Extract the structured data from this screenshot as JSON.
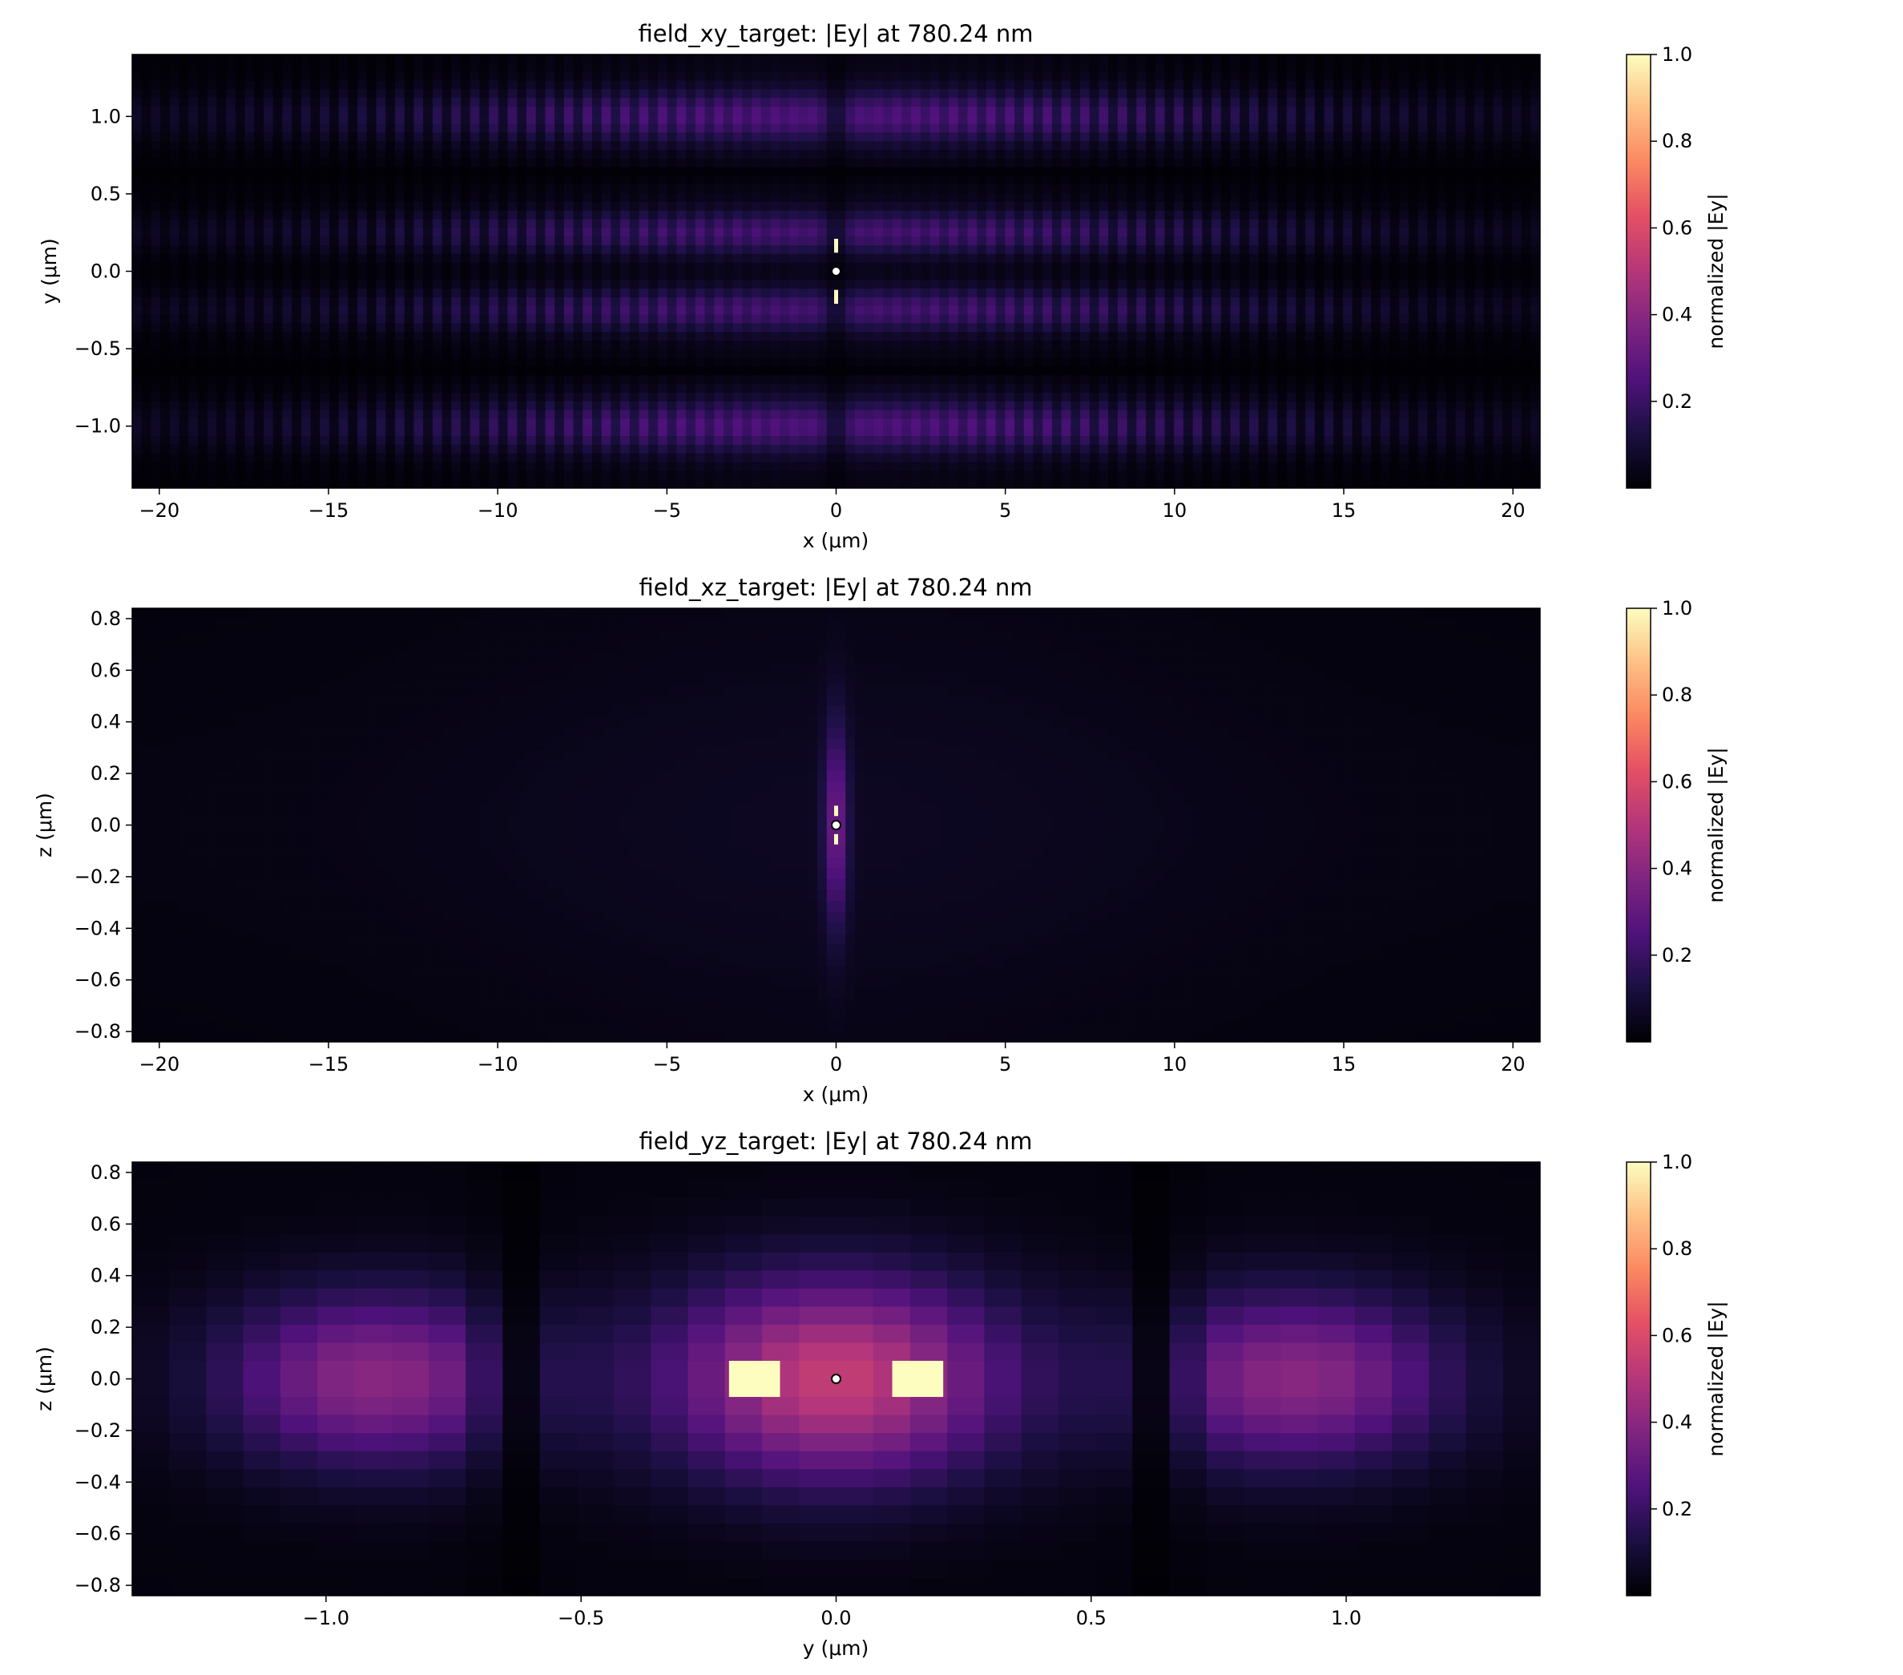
{
  "chart_data": [
    {
      "type": "heatmap",
      "title": "field_xy_target: |Ey| at 780.24 nm",
      "xlabel": "x (μm)",
      "ylabel": "y (μm)",
      "xlim": [
        -20.8,
        20.8
      ],
      "ylim": [
        -1.4,
        1.4
      ],
      "xticks": [
        -20,
        -15,
        -10,
        -5,
        0,
        5,
        10,
        15,
        20
      ],
      "xtick_labels": [
        "−20",
        "−15",
        "−10",
        "−5",
        "0",
        "5",
        "10",
        "15",
        "20"
      ],
      "yticks": [
        -1.0,
        -0.5,
        0.0,
        0.5,
        1.0
      ],
      "ytick_labels": [
        "−1.0",
        "−0.5",
        "0.0",
        "0.5",
        "1.0"
      ],
      "colormap": "magma",
      "colorbar": {
        "label": "normalized |Ey|",
        "range": [
          0.0,
          1.0
        ],
        "ticks": [
          0.2,
          0.4,
          0.6,
          0.8,
          1.0
        ],
        "tick_labels": [
          "0.2",
          "0.4",
          "0.6",
          "0.8",
          "1.0"
        ]
      },
      "marker": {
        "x": 0,
        "y": 0
      },
      "description_values": {
        "bright_bands_y": [
          -1.0,
          -0.25,
          0.25,
          1.0
        ],
        "dark_bands_y": [
          -0.63,
          0.63
        ],
        "band_peak_level": 0.3,
        "fringe_period_x": 0.56,
        "hotspot_level": 1.0
      }
    },
    {
      "type": "heatmap",
      "title": "field_xz_target: |Ey| at 780.24 nm",
      "xlabel": "x (μm)",
      "ylabel": "z (μm)",
      "xlim": [
        -20.8,
        20.8
      ],
      "ylim": [
        -0.84,
        0.84
      ],
      "xticks": [
        -20,
        -15,
        -10,
        -5,
        0,
        5,
        10,
        15,
        20
      ],
      "xtick_labels": [
        "−20",
        "−15",
        "−10",
        "−5",
        "0",
        "5",
        "10",
        "15",
        "20"
      ],
      "yticks": [
        -0.8,
        -0.6,
        -0.4,
        -0.2,
        0.0,
        0.2,
        0.4,
        0.6,
        0.8
      ],
      "ytick_labels": [
        "−0.8",
        "−0.6",
        "−0.4",
        "−0.2",
        "0.0",
        "0.2",
        "0.4",
        "0.6",
        "0.8"
      ],
      "colormap": "magma",
      "colorbar": {
        "label": "normalized |Ey|",
        "range": [
          0.0,
          1.0
        ],
        "ticks": [
          0.2,
          0.4,
          0.6,
          0.8,
          1.0
        ],
        "tick_labels": [
          "0.2",
          "0.4",
          "0.6",
          "0.8",
          "1.0"
        ]
      },
      "marker": {
        "x": 0,
        "z": 0
      },
      "description_values": {
        "background_level": 0.06,
        "central_column_peak": 0.28,
        "hotspot_level": 1.0
      }
    },
    {
      "type": "heatmap",
      "title": "field_yz_target: |Ey| at 780.24 nm",
      "xlabel": "y (μm)",
      "ylabel": "z (μm)",
      "xlim": [
        -1.38,
        1.38
      ],
      "ylim": [
        -0.84,
        0.84
      ],
      "xticks": [
        -1.0,
        -0.5,
        0.0,
        0.5,
        1.0
      ],
      "xtick_labels": [
        "−1.0",
        "−0.5",
        "0.0",
        "0.5",
        "1.0"
      ],
      "yticks": [
        -0.8,
        -0.6,
        -0.4,
        -0.2,
        0.0,
        0.2,
        0.4,
        0.6,
        0.8
      ],
      "ytick_labels": [
        "−0.8",
        "−0.6",
        "−0.4",
        "−0.2",
        "0.0",
        "0.2",
        "0.4",
        "0.6",
        "0.8"
      ],
      "colormap": "magma",
      "colorbar": {
        "label": "normalized |Ey|",
        "range": [
          0.0,
          1.0
        ],
        "ticks": [
          0.2,
          0.4,
          0.6,
          0.8,
          1.0
        ],
        "tick_labels": [
          "0.2",
          "0.4",
          "0.6",
          "0.8",
          "1.0"
        ]
      },
      "marker": {
        "y": 0,
        "z": 0
      },
      "description_values": {
        "center_lobe_peak": 0.52,
        "side_lobe_centers_y": [
          -0.9,
          0.9
        ],
        "side_lobe_peak": 0.38,
        "dark_columns_y": [
          -0.63,
          0.63
        ],
        "hotspot_blocks_y": [
          [
            -0.21,
            -0.11
          ],
          [
            0.11,
            0.21
          ]
        ],
        "hotspot_block_z": [
          -0.07,
          0.07
        ],
        "hotspot_level": 1.0
      }
    }
  ]
}
